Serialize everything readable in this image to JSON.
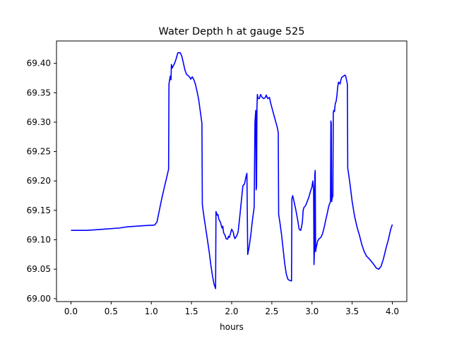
{
  "chart_data": {
    "type": "line",
    "title": "Water Depth h at gauge 525",
    "xlabel": "hours",
    "ylabel": "",
    "xlim": [
      -0.18,
      4.18
    ],
    "ylim": [
      68.995,
      69.438
    ],
    "xticks": [
      0.0,
      0.5,
      1.0,
      1.5,
      2.0,
      2.5,
      3.0,
      3.5,
      4.0
    ],
    "xtick_labels": [
      "0.0",
      "0.5",
      "1.0",
      "1.5",
      "2.0",
      "2.5",
      "3.0",
      "3.5",
      "4.0"
    ],
    "yticks": [
      69.0,
      69.05,
      69.1,
      69.15,
      69.2,
      69.25,
      69.3,
      69.35,
      69.4
    ],
    "ytick_labels": [
      "69.00",
      "69.05",
      "69.10",
      "69.15",
      "69.20",
      "69.25",
      "69.30",
      "69.35",
      "69.40"
    ],
    "grid": false,
    "legend": "none",
    "series": [
      {
        "color": "#0000ff",
        "points": [
          [
            0.0,
            69.116
          ],
          [
            0.2,
            69.116
          ],
          [
            0.4,
            69.118
          ],
          [
            0.6,
            69.12
          ],
          [
            0.7,
            69.122
          ],
          [
            0.9,
            69.124
          ],
          [
            1.04,
            69.125
          ],
          [
            1.07,
            69.13
          ],
          [
            1.1,
            69.15
          ],
          [
            1.13,
            69.17
          ],
          [
            1.16,
            69.188
          ],
          [
            1.19,
            69.205
          ],
          [
            1.215,
            69.22
          ],
          [
            1.22,
            69.365
          ],
          [
            1.235,
            69.378
          ],
          [
            1.245,
            69.372
          ],
          [
            1.25,
            69.398
          ],
          [
            1.26,
            69.392
          ],
          [
            1.275,
            69.396
          ],
          [
            1.29,
            69.4
          ],
          [
            1.31,
            69.408
          ],
          [
            1.33,
            69.418
          ],
          [
            1.36,
            69.418
          ],
          [
            1.38,
            69.412
          ],
          [
            1.4,
            69.4
          ],
          [
            1.42,
            69.388
          ],
          [
            1.44,
            69.381
          ],
          [
            1.46,
            69.379
          ],
          [
            1.48,
            69.376
          ],
          [
            1.49,
            69.373
          ],
          [
            1.51,
            69.377
          ],
          [
            1.53,
            69.372
          ],
          [
            1.55,
            69.364
          ],
          [
            1.57,
            69.352
          ],
          [
            1.59,
            69.338
          ],
          [
            1.61,
            69.318
          ],
          [
            1.63,
            69.298
          ],
          [
            1.635,
            69.16
          ],
          [
            1.66,
            69.135
          ],
          [
            1.69,
            69.108
          ],
          [
            1.72,
            69.08
          ],
          [
            1.74,
            69.058
          ],
          [
            1.76,
            69.04
          ],
          [
            1.78,
            69.025
          ],
          [
            1.8,
            69.017
          ],
          [
            1.805,
            69.148
          ],
          [
            1.82,
            69.142
          ],
          [
            1.83,
            69.143
          ],
          [
            1.84,
            69.135
          ],
          [
            1.86,
            69.13
          ],
          [
            1.87,
            69.125
          ],
          [
            1.88,
            69.12
          ],
          [
            1.89,
            69.123
          ],
          [
            1.9,
            69.112
          ],
          [
            1.92,
            69.107
          ],
          [
            1.93,
            69.102
          ],
          [
            1.95,
            69.101
          ],
          [
            1.96,
            69.106
          ],
          [
            1.97,
            69.104
          ],
          [
            1.98,
            69.108
          ],
          [
            2.0,
            69.118
          ],
          [
            2.02,
            69.113
          ],
          [
            2.03,
            69.106
          ],
          [
            2.04,
            69.102
          ],
          [
            2.06,
            69.106
          ],
          [
            2.08,
            69.113
          ],
          [
            2.1,
            69.138
          ],
          [
            2.12,
            69.165
          ],
          [
            2.14,
            69.192
          ],
          [
            2.16,
            69.195
          ],
          [
            2.18,
            69.208
          ],
          [
            2.19,
            69.213
          ],
          [
            2.2,
            69.075
          ],
          [
            2.22,
            69.09
          ],
          [
            2.24,
            69.11
          ],
          [
            2.26,
            69.135
          ],
          [
            2.28,
            69.155
          ],
          [
            2.29,
            69.3
          ],
          [
            2.3,
            69.32
          ],
          [
            2.305,
            69.185
          ],
          [
            2.31,
            69.192
          ],
          [
            2.315,
            69.325
          ],
          [
            2.32,
            69.347
          ],
          [
            2.33,
            69.34
          ],
          [
            2.345,
            69.34
          ],
          [
            2.36,
            69.347
          ],
          [
            2.38,
            69.342
          ],
          [
            2.4,
            69.34
          ],
          [
            2.42,
            69.342
          ],
          [
            2.43,
            69.346
          ],
          [
            2.45,
            69.34
          ],
          [
            2.47,
            69.342
          ],
          [
            2.49,
            69.33
          ],
          [
            2.51,
            69.32
          ],
          [
            2.53,
            69.31
          ],
          [
            2.55,
            69.3
          ],
          [
            2.57,
            69.29
          ],
          [
            2.58,
            69.282
          ],
          [
            2.585,
            69.143
          ],
          [
            2.6,
            69.13
          ],
          [
            2.62,
            69.11
          ],
          [
            2.64,
            69.085
          ],
          [
            2.66,
            69.06
          ],
          [
            2.68,
            69.042
          ],
          [
            2.7,
            69.033
          ],
          [
            2.72,
            69.031
          ],
          [
            2.745,
            69.03
          ],
          [
            2.75,
            69.17
          ],
          [
            2.76,
            69.175
          ],
          [
            2.78,
            69.163
          ],
          [
            2.8,
            69.15
          ],
          [
            2.82,
            69.135
          ],
          [
            2.84,
            69.118
          ],
          [
            2.86,
            69.116
          ],
          [
            2.87,
            69.122
          ],
          [
            2.88,
            69.13
          ],
          [
            2.89,
            69.15
          ],
          [
            2.9,
            69.155
          ],
          [
            2.92,
            69.158
          ],
          [
            2.94,
            69.165
          ],
          [
            2.96,
            69.172
          ],
          [
            2.98,
            69.182
          ],
          [
            3.0,
            69.19
          ],
          [
            3.01,
            69.2
          ],
          [
            3.02,
            69.185
          ],
          [
            3.025,
            69.058
          ],
          [
            3.03,
            69.08
          ],
          [
            3.035,
            69.21
          ],
          [
            3.04,
            69.218
          ],
          [
            3.045,
            69.08
          ],
          [
            3.05,
            69.085
          ],
          [
            3.07,
            69.098
          ],
          [
            3.09,
            69.102
          ],
          [
            3.11,
            69.104
          ],
          [
            3.13,
            69.11
          ],
          [
            3.15,
            69.12
          ],
          [
            3.17,
            69.133
          ],
          [
            3.19,
            69.145
          ],
          [
            3.21,
            69.158
          ],
          [
            3.23,
            69.165
          ],
          [
            3.235,
            69.302
          ],
          [
            3.24,
            69.298
          ],
          [
            3.245,
            69.165
          ],
          [
            3.25,
            69.17
          ],
          [
            3.26,
            69.175
          ],
          [
            3.265,
            69.315
          ],
          [
            3.27,
            69.32
          ],
          [
            3.28,
            69.318
          ],
          [
            3.29,
            69.332
          ],
          [
            3.3,
            69.335
          ],
          [
            3.31,
            69.345
          ],
          [
            3.32,
            69.36
          ],
          [
            3.33,
            69.368
          ],
          [
            3.35,
            69.365
          ],
          [
            3.36,
            69.372
          ],
          [
            3.37,
            69.376
          ],
          [
            3.39,
            69.378
          ],
          [
            3.41,
            69.38
          ],
          [
            3.42,
            69.378
          ],
          [
            3.44,
            69.365
          ],
          [
            3.445,
            69.222
          ],
          [
            3.47,
            69.198
          ],
          [
            3.5,
            69.165
          ],
          [
            3.53,
            69.14
          ],
          [
            3.56,
            69.122
          ],
          [
            3.59,
            69.108
          ],
          [
            3.62,
            69.092
          ],
          [
            3.65,
            69.08
          ],
          [
            3.68,
            69.072
          ],
          [
            3.71,
            69.068
          ],
          [
            3.74,
            69.063
          ],
          [
            3.77,
            69.058
          ],
          [
            3.8,
            69.052
          ],
          [
            3.83,
            69.05
          ],
          [
            3.86,
            69.055
          ],
          [
            3.89,
            69.068
          ],
          [
            3.92,
            69.085
          ],
          [
            3.95,
            69.1
          ],
          [
            3.98,
            69.118
          ],
          [
            4.0,
            69.126
          ]
        ]
      }
    ]
  }
}
